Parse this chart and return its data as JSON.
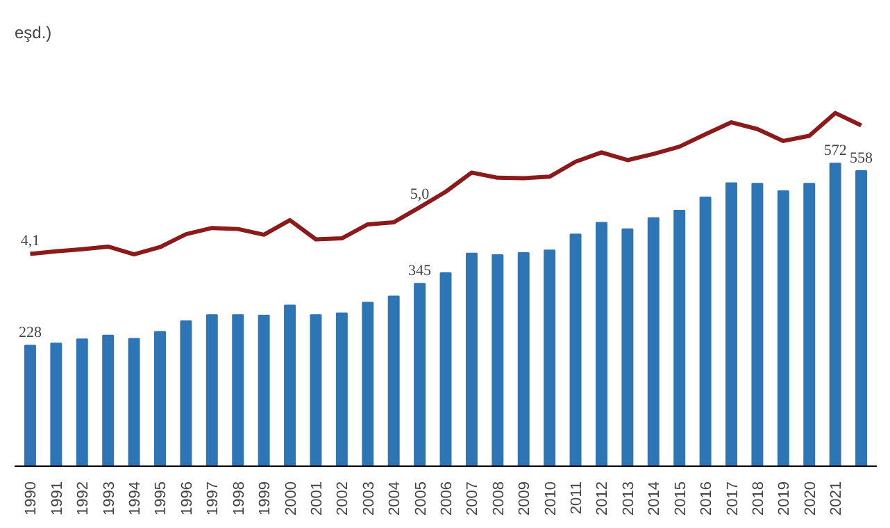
{
  "chart_data": {
    "type": "bar",
    "annotations": [
      "eşd.)"
    ],
    "categories": [
      "1990",
      "1991",
      "1992",
      "1993",
      "1994",
      "1995",
      "1996",
      "1997",
      "1998",
      "1999",
      "2000",
      "2001",
      "2002",
      "2003",
      "2004",
      "2005",
      "2006",
      "2007",
      "2008",
      "2009",
      "2010",
      "2011",
      "2012",
      "2013",
      "2014",
      "2015",
      "2016",
      "2017",
      "2018",
      "2019",
      "2020",
      "2021",
      null
    ],
    "series": [
      {
        "color": "#2e75b6",
        "values": [
          228,
          232,
          240,
          247,
          241,
          254,
          274,
          286,
          286,
          285,
          304,
          286,
          289,
          309,
          321,
          345,
          365,
          402,
          399,
          403,
          408,
          438,
          460,
          448,
          469,
          483,
          508,
          535,
          534,
          520,
          534,
          572,
          558
        ],
        "value_labels": [
          "228",
          null,
          null,
          null,
          null,
          null,
          null,
          null,
          null,
          null,
          null,
          null,
          null,
          null,
          null,
          "345",
          null,
          null,
          null,
          null,
          null,
          null,
          null,
          null,
          null,
          null,
          null,
          null,
          null,
          null,
          null,
          "572",
          "558"
        ]
      },
      {
        "type": "line",
        "axis": "y2",
        "color": "#8b1a1a",
        "values": [
          4.1,
          4.15,
          4.19,
          4.24,
          4.09,
          4.23,
          4.48,
          4.6,
          4.58,
          4.47,
          4.75,
          4.38,
          4.4,
          4.67,
          4.71,
          5.0,
          5.3,
          5.67,
          5.57,
          5.56,
          5.59,
          5.88,
          6.06,
          5.91,
          6.03,
          6.17,
          6.41,
          6.64,
          6.51,
          6.28,
          6.38,
          6.82,
          6.58
        ],
        "value_labels": [
          "4,1",
          null,
          null,
          null,
          null,
          null,
          null,
          null,
          null,
          null,
          null,
          null,
          null,
          null,
          null,
          "5,0",
          null,
          null,
          null,
          null,
          null,
          null,
          null,
          null,
          null,
          null,
          null,
          null,
          null,
          null,
          null,
          null,
          null
        ]
      }
    ],
    "tick_labels": "x",
    "grid": false
  }
}
